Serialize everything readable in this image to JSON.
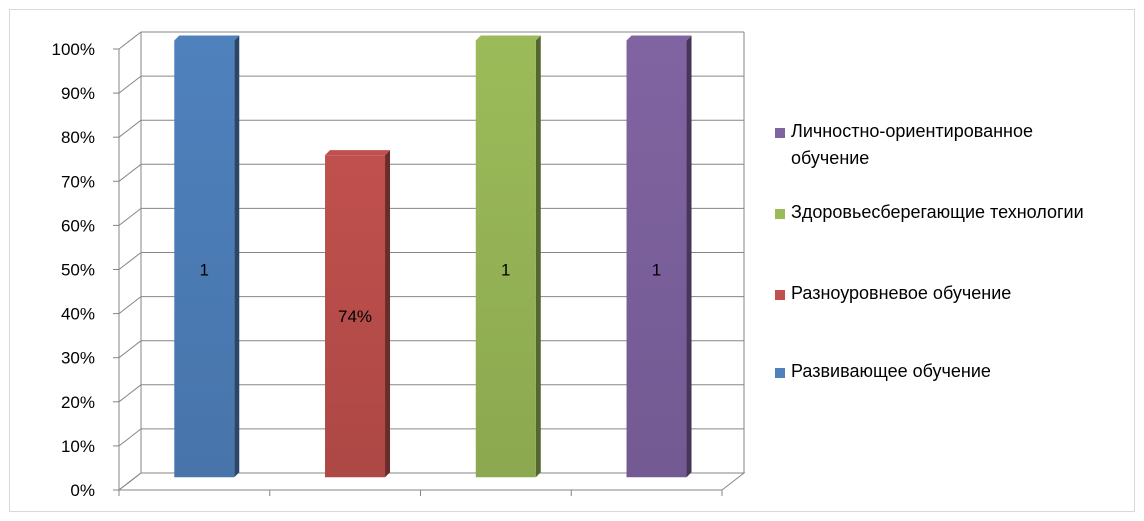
{
  "chart_data": {
    "type": "bar",
    "style": "3d-column",
    "categories": [
      "Развивающее обучение",
      "Разноуровневое обучение",
      "Здоровьесберегающие технологии",
      "Личностно-ориентированное обучение"
    ],
    "values": [
      1.0,
      0.74,
      1.0,
      1.0
    ],
    "data_labels": [
      "1",
      "74%",
      "1",
      "1"
    ],
    "colors": [
      "#4F81BD",
      "#C0504D",
      "#9BBB59",
      "#8064A2"
    ],
    "y_ticks": [
      "0%",
      "10%",
      "20%",
      "30%",
      "40%",
      "50%",
      "60%",
      "70%",
      "80%",
      "90%",
      "100%"
    ],
    "ylim": [
      0,
      1
    ],
    "grid": true,
    "legend": {
      "position": "right",
      "entries": [
        {
          "label": "Личностно-ориентированное обучение",
          "color": "#8064A2"
        },
        {
          "label": "Здоровьесберегающие технологии",
          "color": "#9BBB59"
        },
        {
          "label": "Разноуровневое обучение",
          "color": "#C0504D"
        },
        {
          "label": "Развивающее обучение",
          "color": "#4F81BD"
        }
      ]
    }
  }
}
